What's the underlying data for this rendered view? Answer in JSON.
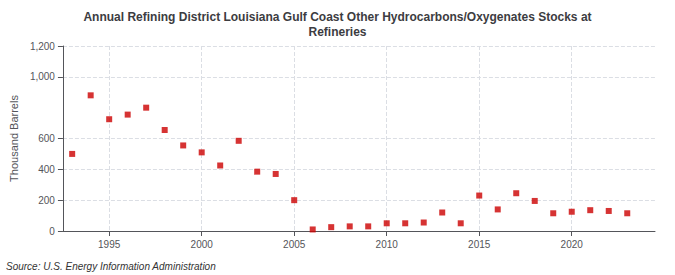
{
  "chart_data": {
    "type": "scatter",
    "title": "Annual Refining District Louisiana Gulf Coast Other Hydrocarbons/Oxygenates Stocks at\nRefineries",
    "ylabel": "Thousand Barrels",
    "annotations": [
      "Source: U.S. Energy Information Administration"
    ],
    "x": [
      1993,
      1994,
      1995,
      1996,
      1997,
      1998,
      1999,
      2000,
      2001,
      2002,
      2003,
      2004,
      2005,
      2006,
      2007,
      2008,
      2009,
      2010,
      2011,
      2012,
      2013,
      2014,
      2015,
      2016,
      2017,
      2018,
      2019,
      2020,
      2021,
      2022,
      2023
    ],
    "values": [
      500,
      880,
      725,
      755,
      800,
      655,
      555,
      510,
      425,
      585,
      385,
      370,
      200,
      10,
      25,
      30,
      30,
      50,
      50,
      55,
      120,
      50,
      230,
      140,
      245,
      195,
      115,
      125,
      135,
      130,
      115
    ],
    "color": "#cc0000",
    "marker": "square",
    "xlim": [
      1992.5,
      2024.5
    ],
    "xticks": [
      1995,
      2000,
      2005,
      2010,
      2015,
      2020
    ],
    "ylim": [
      0,
      1200
    ],
    "yticks": [
      0,
      200,
      400,
      600,
      {
        "value": 1000,
        "label": "1,000"
      },
      {
        "value": 1200,
        "label": "1,200"
      }
    ],
    "grid": true
  }
}
